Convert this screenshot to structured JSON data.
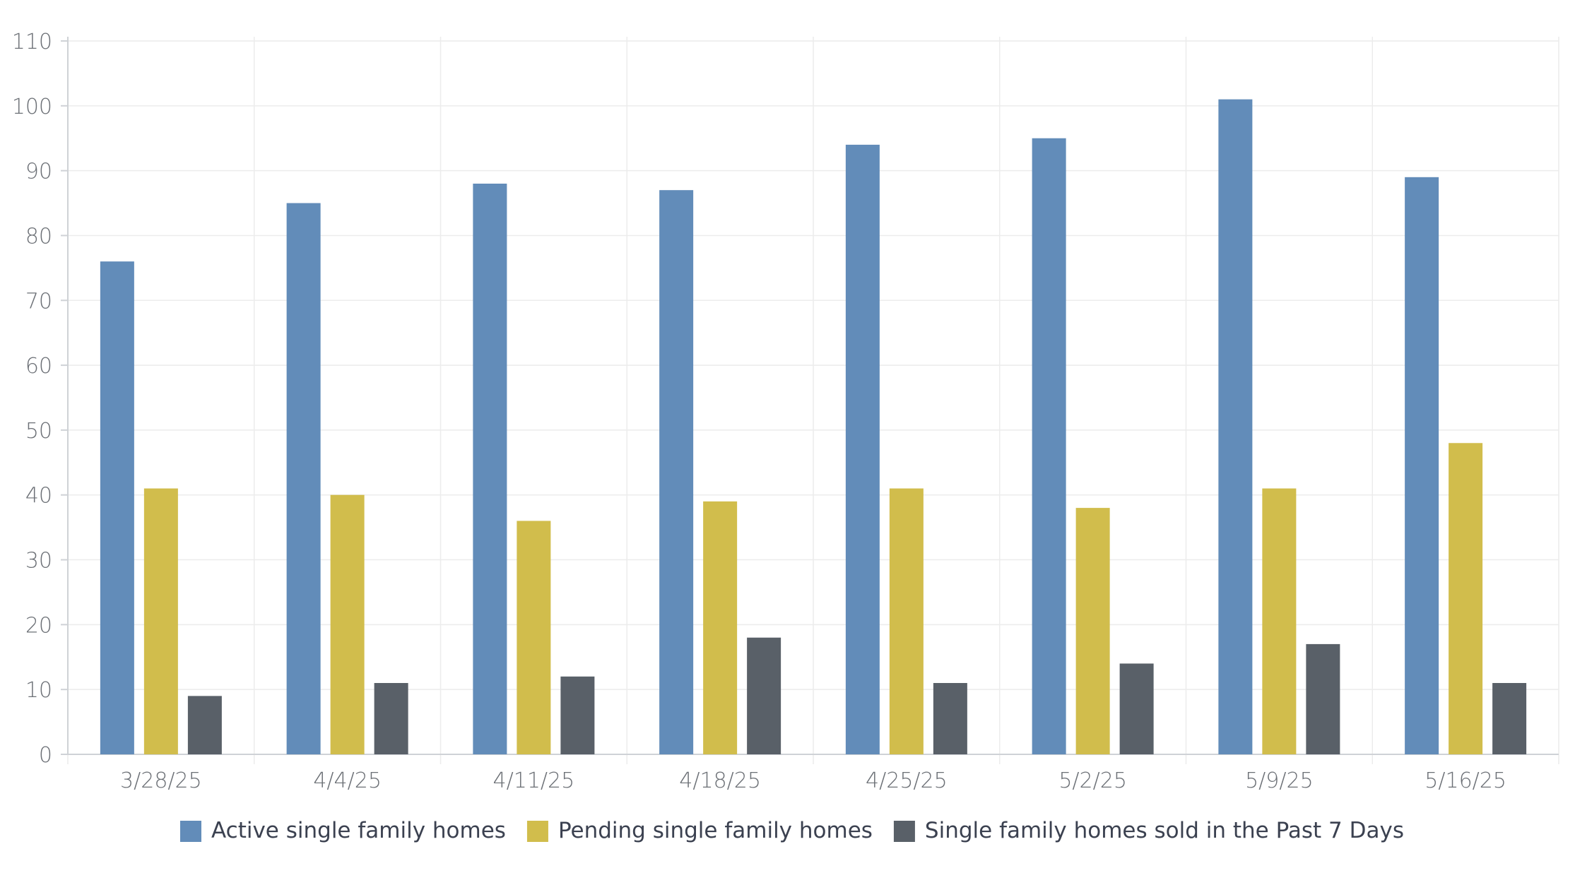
{
  "chart_data": {
    "type": "bar",
    "title": "",
    "xlabel": "",
    "ylabel": "",
    "ylim": [
      0,
      110
    ],
    "yticks": [
      0,
      10,
      20,
      30,
      40,
      50,
      60,
      70,
      80,
      90,
      100,
      110
    ],
    "grid": true,
    "legend_position": "bottom-center",
    "categories": [
      "3/28/25",
      "4/4/25",
      "4/11/25",
      "4/18/25",
      "4/25/25",
      "5/2/25",
      "5/9/25",
      "5/16/25"
    ],
    "series": [
      {
        "name": "Active single family homes",
        "color": "#628cb9",
        "values": [
          76,
          85,
          88,
          87,
          94,
          95,
          101,
          89
        ]
      },
      {
        "name": "Pending single family homes",
        "color": "#d1bd4c",
        "values": [
          41,
          40,
          36,
          39,
          41,
          38,
          41,
          48
        ]
      },
      {
        "name": "Single family homes sold in the Past 7 Days",
        "color": "#596068",
        "values": [
          9,
          11,
          12,
          18,
          11,
          14,
          17,
          11
        ]
      }
    ]
  }
}
